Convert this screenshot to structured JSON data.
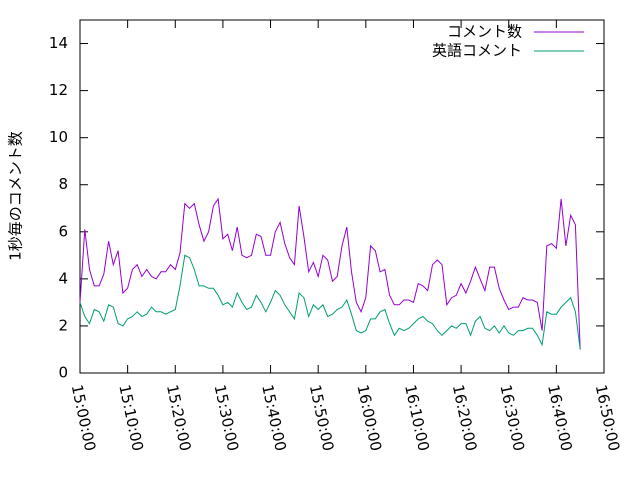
{
  "chart_data": {
    "type": "line",
    "y_label": "1秒毎のコメント数",
    "x": [
      "15:00:00",
      "15:01:00",
      "15:02:00",
      "15:03:00",
      "15:04:00",
      "15:05:00",
      "15:06:00",
      "15:07:00",
      "15:08:00",
      "15:09:00",
      "15:10:00",
      "15:11:00",
      "15:12:00",
      "15:13:00",
      "15:14:00",
      "15:15:00",
      "15:16:00",
      "15:17:00",
      "15:18:00",
      "15:19:00",
      "15:20:00",
      "15:21:00",
      "15:22:00",
      "15:23:00",
      "15:24:00",
      "15:25:00",
      "15:26:00",
      "15:27:00",
      "15:28:00",
      "15:29:00",
      "15:30:00",
      "15:31:00",
      "15:32:00",
      "15:33:00",
      "15:34:00",
      "15:35:00",
      "15:36:00",
      "15:37:00",
      "15:38:00",
      "15:39:00",
      "15:40:00",
      "15:41:00",
      "15:42:00",
      "15:43:00",
      "15:44:00",
      "15:45:00",
      "15:46:00",
      "15:47:00",
      "15:48:00",
      "15:49:00",
      "15:50:00",
      "15:51:00",
      "15:52:00",
      "15:53:00",
      "15:54:00",
      "15:55:00",
      "15:56:00",
      "15:57:00",
      "15:58:00",
      "15:59:00",
      "16:00:00",
      "16:01:00",
      "16:02:00",
      "16:03:00",
      "16:04:00",
      "16:05:00",
      "16:06:00",
      "16:07:00",
      "16:08:00",
      "16:09:00",
      "16:10:00",
      "16:11:00",
      "16:12:00",
      "16:13:00",
      "16:14:00",
      "16:15:00",
      "16:16:00",
      "16:17:00",
      "16:18:00",
      "16:19:00",
      "16:20:00",
      "16:21:00",
      "16:22:00",
      "16:23:00",
      "16:24:00",
      "16:25:00",
      "16:26:00",
      "16:27:00",
      "16:28:00",
      "16:29:00",
      "16:30:00",
      "16:31:00",
      "16:32:00",
      "16:33:00",
      "16:34:00",
      "16:35:00",
      "16:36:00",
      "16:37:00",
      "16:38:00",
      "16:39:00",
      "16:40:00",
      "16:41:00",
      "16:42:00",
      "16:43:00",
      "16:44:00",
      "16:45:00"
    ],
    "series": [
      {
        "name": "コメント数",
        "color": "#9400d3",
        "values": [
          3.0,
          6.1,
          4.4,
          3.7,
          3.7,
          4.2,
          5.6,
          4.6,
          5.2,
          3.4,
          3.6,
          4.4,
          4.6,
          4.1,
          4.4,
          4.1,
          4.0,
          4.3,
          4.3,
          4.6,
          4.4,
          5.1,
          7.2,
          7.0,
          7.2,
          6.3,
          5.6,
          6.0,
          7.1,
          7.4,
          5.7,
          5.9,
          5.2,
          6.2,
          5.0,
          4.9,
          5.0,
          5.9,
          5.8,
          5.0,
          5.0,
          6.0,
          6.4,
          5.5,
          4.9,
          4.6,
          7.1,
          5.8,
          4.3,
          4.7,
          4.1,
          5.0,
          4.8,
          3.9,
          4.1,
          5.4,
          6.2,
          4.3,
          3.0,
          2.6,
          3.2,
          5.4,
          5.2,
          4.3,
          4.4,
          3.3,
          2.9,
          2.9,
          3.1,
          3.1,
          3.0,
          3.8,
          3.7,
          3.5,
          4.6,
          4.8,
          4.6,
          2.9,
          3.2,
          3.3,
          3.8,
          3.4,
          3.9,
          4.5,
          4.0,
          3.5,
          4.5,
          4.5,
          3.6,
          3.1,
          2.7,
          2.8,
          2.8,
          3.2,
          3.1,
          3.1,
          3.0,
          1.8,
          5.4,
          5.5,
          5.3,
          7.4,
          5.4,
          6.7,
          6.3,
          1.0
        ]
      },
      {
        "name": "英語コメント",
        "color": "#009e73",
        "values": [
          3.0,
          2.4,
          2.1,
          2.7,
          2.6,
          2.2,
          2.9,
          2.8,
          2.1,
          2.0,
          2.3,
          2.4,
          2.6,
          2.4,
          2.5,
          2.8,
          2.6,
          2.6,
          2.5,
          2.6,
          2.7,
          3.7,
          5.0,
          4.9,
          4.4,
          3.7,
          3.7,
          3.6,
          3.6,
          3.3,
          2.9,
          3.0,
          2.8,
          3.4,
          3.0,
          2.7,
          2.8,
          3.3,
          3.0,
          2.6,
          3.0,
          3.5,
          3.3,
          2.9,
          2.6,
          2.3,
          3.4,
          3.2,
          2.4,
          2.9,
          2.7,
          2.9,
          2.4,
          2.5,
          2.7,
          2.8,
          3.1,
          2.5,
          1.8,
          1.7,
          1.8,
          2.3,
          2.3,
          2.6,
          2.7,
          2.1,
          1.6,
          1.9,
          1.8,
          1.9,
          2.1,
          2.3,
          2.4,
          2.2,
          2.1,
          1.8,
          1.6,
          1.8,
          2.0,
          1.9,
          2.1,
          2.1,
          1.6,
          2.2,
          2.4,
          1.9,
          1.8,
          2.0,
          1.7,
          2.0,
          1.7,
          1.6,
          1.8,
          1.8,
          1.9,
          1.9,
          1.6,
          1.2,
          2.6,
          2.5,
          2.5,
          2.8,
          3.0,
          3.2,
          2.6,
          1.0
        ]
      }
    ],
    "xlim": [
      "15:00:00",
      "16:50:00"
    ],
    "xticks": [
      "15:00:00",
      "15:10:00",
      "15:20:00",
      "15:30:00",
      "15:40:00",
      "15:50:00",
      "16:00:00",
      "16:10:00",
      "16:20:00",
      "16:30:00",
      "16:40:00",
      "16:50:00"
    ],
    "ylim": [
      0,
      15
    ],
    "yticks": [
      0,
      2,
      4,
      6,
      8,
      10,
      12,
      14
    ],
    "legend": "top-right"
  }
}
